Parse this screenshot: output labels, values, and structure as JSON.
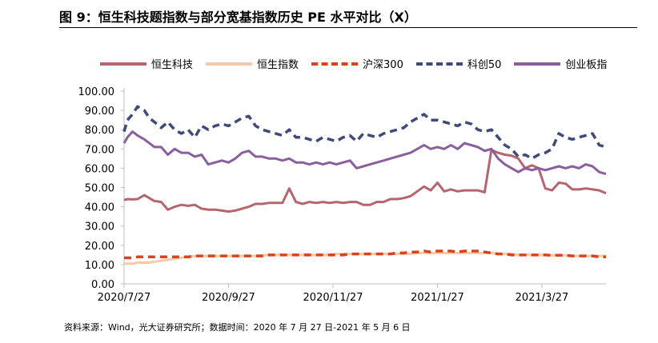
{
  "title": "图 9：恒生科技题指数与部分宽基指数历史 PE 水平对比（X）",
  "source": "资料来源：Wind，光大证券研究所；数据时间：2020 年 7 月 27 日-2021 年 5 月 6 日",
  "chart_data": {
    "type": "line",
    "title": "图 9：恒生科技题指数与部分宽基指数历史 PE 水平对比（X）",
    "xlabel": "",
    "ylabel": "",
    "ylim": [
      0,
      100
    ],
    "yticks": [
      "0.00",
      "10.00",
      "20.00",
      "30.00",
      "40.00",
      "50.00",
      "60.00",
      "70.00",
      "80.00",
      "90.00",
      "100.00"
    ],
    "xticks": [
      "2020/7/27",
      "2020/9/27",
      "2020/11/27",
      "2021/1/27",
      "2021/3/27"
    ],
    "legend_position": "top",
    "grid": false,
    "x": [
      0,
      2,
      5,
      8,
      12,
      15,
      18,
      22,
      26,
      30,
      34,
      38,
      42,
      46,
      50,
      54,
      58,
      62,
      66,
      70,
      74,
      78,
      82,
      86,
      90,
      94,
      98,
      102,
      106,
      110,
      114,
      118,
      122,
      126,
      130,
      134,
      138,
      142,
      146,
      150,
      154,
      158,
      162,
      166,
      170,
      174,
      178,
      182,
      186,
      190,
      194,
      198,
      202,
      206,
      210,
      214,
      218,
      222,
      226,
      230,
      234,
      238,
      242,
      246,
      250,
      254,
      258,
      262,
      266,
      270,
      274,
      278,
      282,
      286
    ],
    "series": [
      {
        "name": "恒生科技",
        "color": "#b5656e",
        "dash": "solid",
        "values": [
          43.5,
          44,
          43.8,
          44,
          46,
          44.5,
          43,
          42.5,
          38.5,
          40,
          41,
          40.5,
          41,
          39,
          38.5,
          38.5,
          38,
          37.5,
          38,
          39,
          40,
          41.5,
          41.5,
          42,
          42,
          42,
          49.5,
          42.5,
          41.5,
          42.5,
          42,
          42.5,
          42,
          42.5,
          42,
          42.5,
          42.5,
          41,
          41,
          42.5,
          42.5,
          44,
          44,
          44.5,
          45.5,
          48,
          50.5,
          48.5,
          52.5,
          48,
          49,
          48,
          48.5,
          48.5,
          48.5,
          47.5,
          69.5,
          68,
          67,
          66.5,
          65,
          60,
          61.5,
          60,
          49.5,
          48.5,
          52.5,
          52,
          49,
          49,
          49.5,
          49,
          48.5,
          47
        ]
      },
      {
        "name": "恒生指数",
        "color": "#f7c9a6",
        "dash": "solid",
        "values": [
          10.5,
          10.5,
          10.5,
          11,
          11,
          11,
          11.5,
          12,
          12.5,
          13,
          13.5,
          14,
          14.5,
          14.5,
          14.5,
          14.5,
          14.5,
          14.5,
          14.5,
          14.5,
          14.5,
          14.5,
          14.8,
          15,
          15,
          15,
          15,
          15,
          15,
          15,
          15,
          15,
          15,
          15.5,
          15.5,
          15.5,
          15.5,
          15.5,
          15.5,
          15.5,
          15.5,
          15.5,
          15.5,
          15.5,
          15.5,
          16,
          16,
          16,
          16,
          16,
          16,
          16,
          16,
          16,
          16,
          16,
          16,
          15.5,
          15.5,
          15.5,
          15,
          15,
          15,
          15,
          15,
          14.8,
          14.8,
          14.8,
          14.5,
          14.5,
          14.5,
          14.5,
          14.5,
          14.5
        ]
      },
      {
        "name": "沪深300",
        "color": "#d8431e",
        "dash": "dashed",
        "values": [
          13.5,
          13.5,
          13.5,
          14,
          14,
          14,
          14,
          14,
          14,
          14,
          14,
          14,
          14.5,
          14.5,
          14.5,
          14.5,
          14.5,
          14.5,
          14.5,
          14.5,
          14.5,
          14.5,
          14.5,
          15,
          15,
          15,
          15,
          15,
          15,
          15,
          15,
          15,
          15,
          15,
          15,
          15.5,
          15.5,
          15.5,
          15.5,
          15.5,
          15.5,
          15.5,
          16,
          16,
          16.5,
          16.5,
          17,
          16.5,
          17,
          17,
          17,
          16.5,
          17,
          17,
          17,
          16.5,
          16,
          15.5,
          15.5,
          15,
          15,
          15,
          15,
          15,
          15,
          14.8,
          14.8,
          14.8,
          14.5,
          14.5,
          14.5,
          14.5,
          14,
          14
        ]
      },
      {
        "name": "科创50",
        "color": "#3f4a7a",
        "dash": "dashed",
        "values": [
          79,
          85,
          88,
          92,
          90,
          86,
          84,
          81,
          84,
          80,
          78,
          80,
          76,
          82,
          80,
          82,
          83,
          82,
          84,
          86,
          87,
          82,
          80,
          79,
          78,
          77,
          80,
          76,
          76,
          75,
          74,
          76,
          75,
          74,
          76,
          77,
          74,
          78,
          77,
          76,
          78,
          79,
          80,
          81,
          84,
          86,
          88,
          85,
          85,
          84,
          83,
          82,
          84,
          83,
          80,
          79,
          80,
          76,
          72,
          70,
          66,
          67,
          65,
          67,
          68,
          70,
          78,
          76,
          75,
          76,
          77,
          78,
          72,
          71
        ]
      },
      {
        "name": "创业板指",
        "color": "#8b5e9e",
        "dash": "solid",
        "values": [
          73,
          76,
          79,
          77,
          75,
          73,
          71,
          71,
          67,
          70,
          68,
          68,
          66,
          67,
          62,
          63,
          64,
          63,
          65,
          68,
          69,
          66,
          66,
          65,
          65,
          64,
          65,
          63,
          63,
          62,
          63,
          62,
          63,
          62,
          63,
          64,
          60,
          61,
          62,
          63,
          64,
          65,
          66,
          67,
          68,
          70,
          72,
          70,
          71,
          70,
          72,
          70,
          73,
          72,
          71,
          69,
          70,
          65,
          62,
          60,
          58,
          60,
          59,
          60,
          59,
          60,
          61,
          60,
          61,
          60,
          62,
          61,
          58,
          57
        ]
      }
    ]
  }
}
